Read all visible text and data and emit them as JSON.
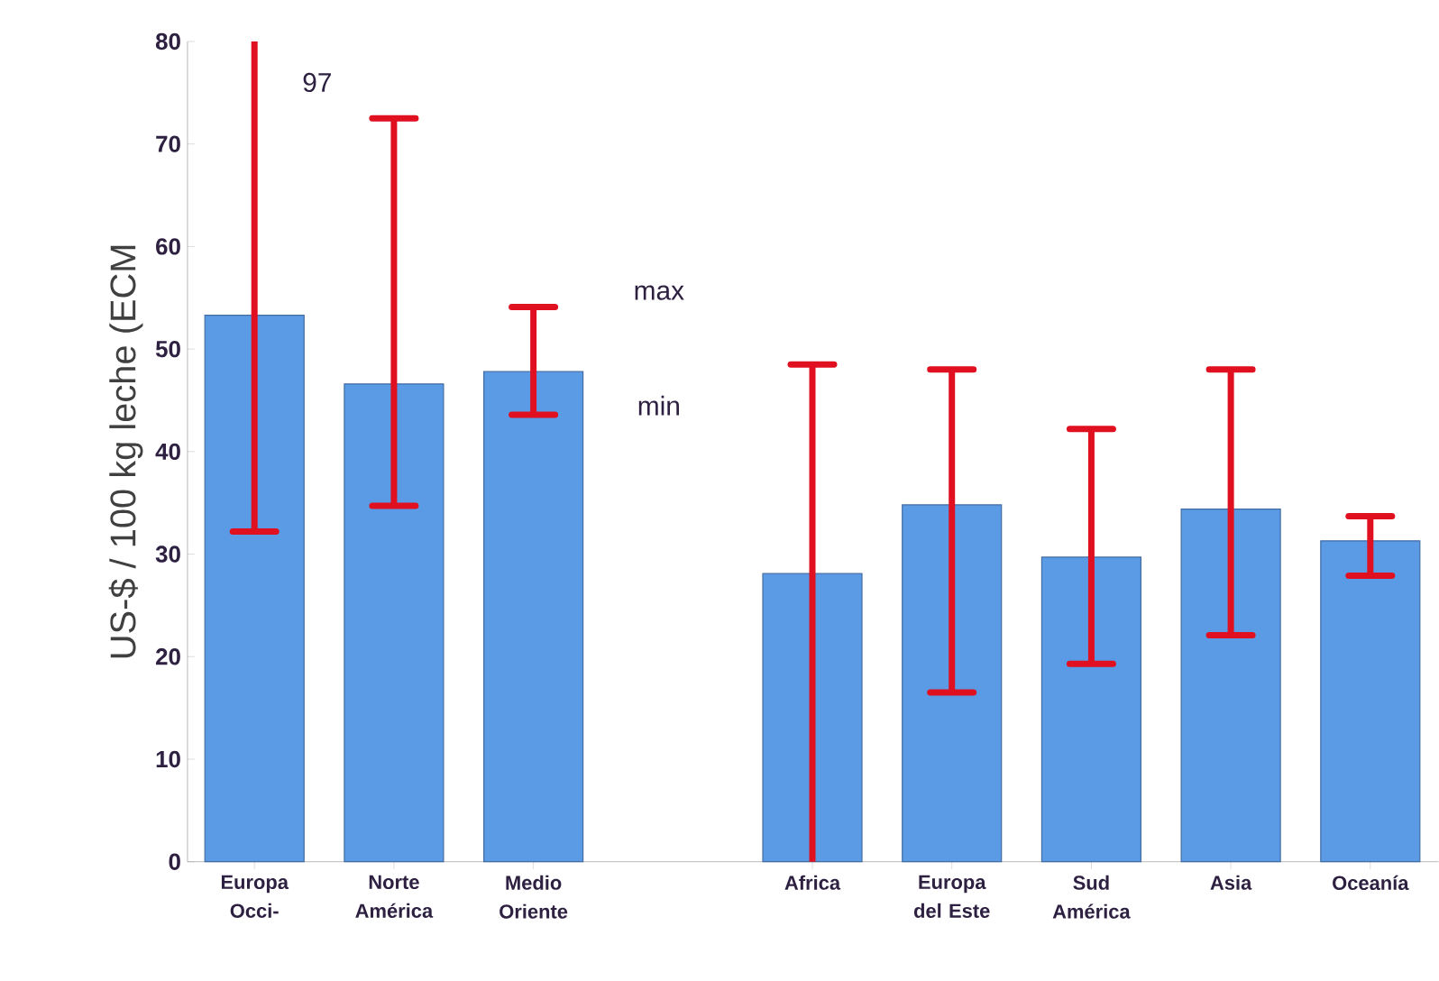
{
  "chart_data": {
    "type": "bar",
    "ylabel": "US-$ / 100 kg leche (ECM",
    "categories": [
      "Europa Occi-",
      "Norte América",
      "Medio Oriente",
      null,
      "Africa",
      "Europa del Este",
      "Sud América",
      "Asia",
      "Oceanía"
    ],
    "values": [
      53.3,
      46.6,
      47.8,
      null,
      28.1,
      34.8,
      29.7,
      34.4,
      31.3
    ],
    "errors": [
      [
        32.2,
        80
      ],
      [
        34.7,
        72.5
      ],
      [
        43.6,
        54.1
      ],
      null,
      [
        0,
        48.5
      ],
      [
        16.5,
        48.0
      ],
      [
        19.3,
        42.2
      ],
      [
        22.1,
        48.0
      ],
      [
        27.9,
        33.7
      ]
    ],
    "color": "#5b9be6",
    "ylim": [
      0,
      80
    ],
    "yticks": [
      0,
      10,
      20,
      30,
      40,
      50,
      60,
      70,
      80
    ],
    "grid": false,
    "annotations": [
      "97",
      "max",
      "min"
    ]
  }
}
